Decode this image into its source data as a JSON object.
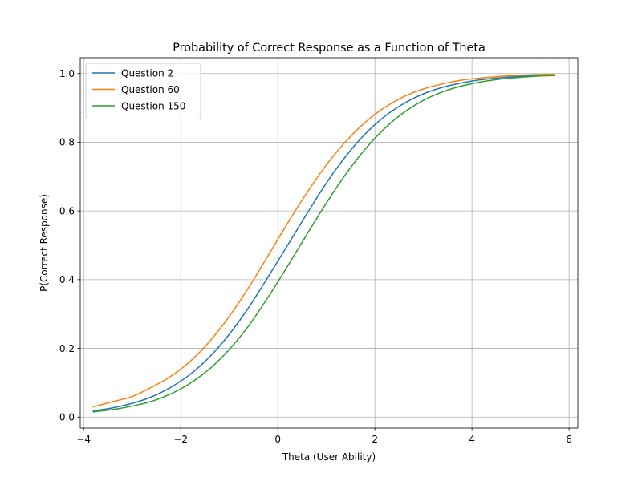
{
  "chart_data": {
    "type": "line",
    "title": "Probability of Correct Response as a Function of Theta",
    "xlabel": "Theta (User Ability)",
    "ylabel": "P(Correct Response)",
    "xlim": [
      -4.07,
      6.18
    ],
    "ylim": [
      -0.032,
      1.046
    ],
    "xticks": [
      -4,
      -2,
      0,
      2,
      4,
      6
    ],
    "xtick_labels": [
      "−4",
      "−2",
      "0",
      "2",
      "4",
      "6"
    ],
    "yticks": [
      0.0,
      0.2,
      0.4,
      0.6,
      0.8,
      1.0
    ],
    "ytick_labels": [
      "0.0",
      "0.2",
      "0.4",
      "0.6",
      "0.8",
      "1.0"
    ],
    "grid": true,
    "legend_position": "top-left",
    "x": [
      -3.8,
      -3.4,
      -3.0,
      -2.6,
      -2.2,
      -1.8,
      -1.4,
      -1.0,
      -0.6,
      -0.2,
      0.2,
      0.6,
      1.0,
      1.4,
      1.8,
      2.2,
      2.6,
      3.0,
      3.4,
      3.8,
      4.2,
      4.6,
      5.0,
      5.4,
      5.7
    ],
    "series": [
      {
        "name": "Question 2",
        "color": "#1f77b4",
        "values": [
          0.018,
          0.027,
          0.04,
          0.059,
          0.087,
          0.125,
          0.176,
          0.241,
          0.319,
          0.408,
          0.5,
          0.592,
          0.681,
          0.759,
          0.824,
          0.875,
          0.913,
          0.941,
          0.96,
          0.973,
          0.982,
          0.988,
          0.992,
          0.995,
          0.996
        ]
      },
      {
        "name": "Question 60",
        "color": "#ff7f0e",
        "values": [
          0.03,
          0.045,
          0.06,
          0.087,
          0.119,
          0.163,
          0.221,
          0.293,
          0.377,
          0.47,
          0.564,
          0.653,
          0.734,
          0.802,
          0.858,
          0.901,
          0.933,
          0.955,
          0.97,
          0.981,
          0.987,
          0.992,
          0.995,
          0.997,
          0.998
        ]
      },
      {
        "name": "Question 150",
        "color": "#2ca02c",
        "values": [
          0.015,
          0.022,
          0.032,
          0.046,
          0.068,
          0.099,
          0.141,
          0.197,
          0.266,
          0.349,
          0.439,
          0.532,
          0.623,
          0.707,
          0.78,
          0.84,
          0.887,
          0.922,
          0.947,
          0.964,
          0.976,
          0.984,
          0.989,
          0.993,
          0.994
        ]
      }
    ]
  }
}
